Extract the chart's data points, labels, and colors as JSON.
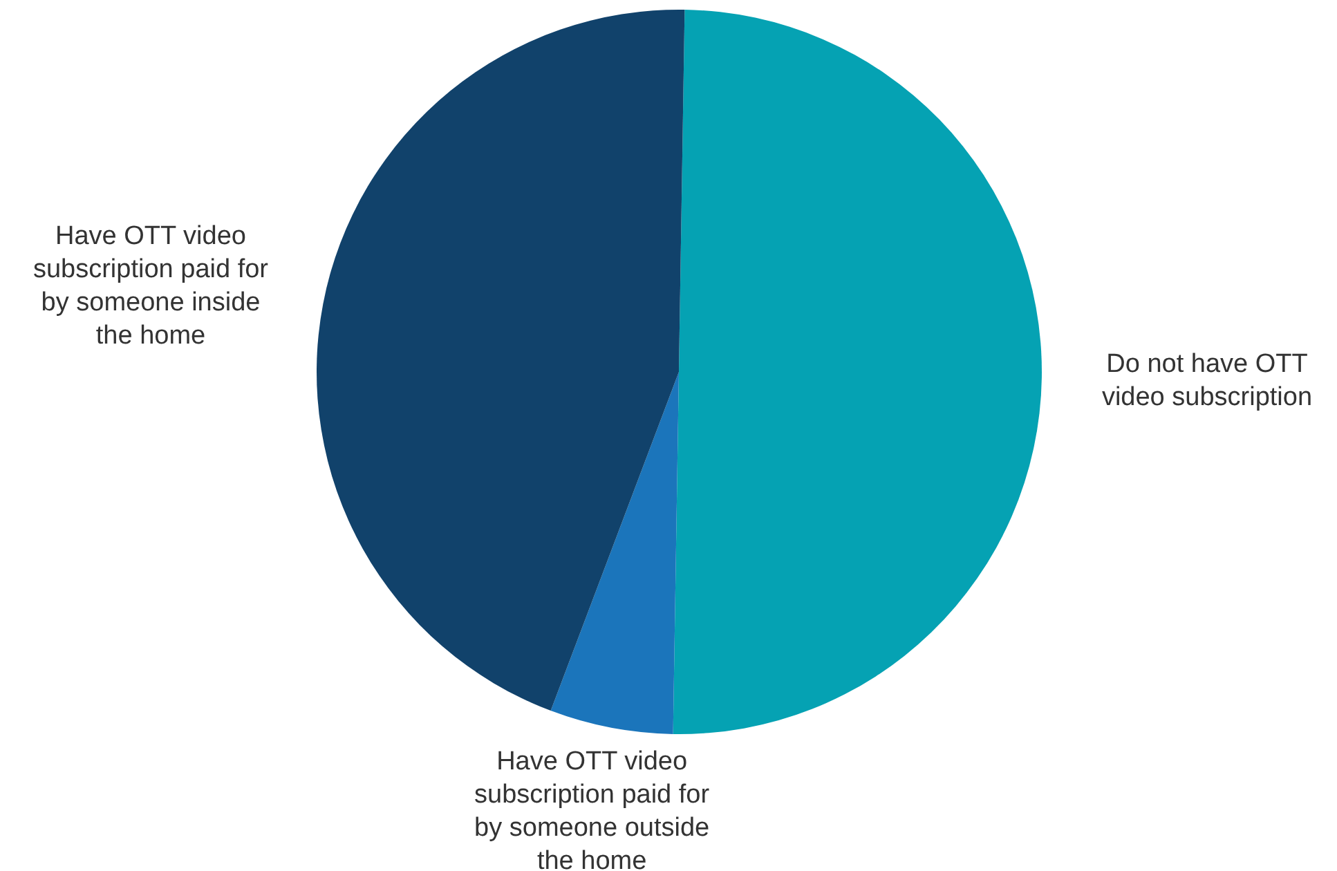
{
  "chart_data": {
    "type": "pie",
    "categories": [
      "Do not have OTT video subscription",
      "Have OTT video subscription paid for by someone outside the home",
      "Have OTT video subscription paid for by someone inside the home"
    ],
    "values": [
      50,
      5.5,
      44.5
    ],
    "colors": [
      "#05a2b3",
      "#1b75bb",
      "#11426b"
    ]
  }
}
